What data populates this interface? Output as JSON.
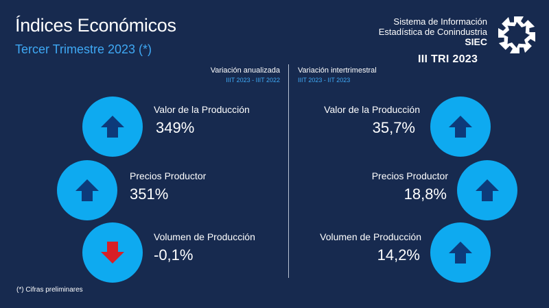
{
  "header": {
    "title": "Índices Económicos",
    "subtitle": "Tercer Trimestre 2023 (*)"
  },
  "org": {
    "line1": "Sistema de Información",
    "line2": "Estadística de Conindustria",
    "acronym": "SIEC",
    "period": "III TRI 2023",
    "logo_icon": "arrows-ring-logo-icon"
  },
  "columns": {
    "left": {
      "heading": "Variación anualizada",
      "sub": "IIIT 2023 - IIIT 2022"
    },
    "right": {
      "heading": "Variación intertrimestral",
      "sub": "IIIT 2023 - IIT 2023"
    }
  },
  "left_items": [
    {
      "label": "Valor de la Producción",
      "value": "349%",
      "direction": "up"
    },
    {
      "label": "Precios Productor",
      "value": "351%",
      "direction": "up"
    },
    {
      "label": "Volumen de Producción",
      "value": "-0,1%",
      "direction": "down"
    }
  ],
  "right_items": [
    {
      "label": "Valor de la Producción",
      "value": "35,7%",
      "direction": "up"
    },
    {
      "label": "Precios Productor",
      "value": "18,8%",
      "direction": "up"
    },
    {
      "label": "Volumen de Producción",
      "value": "14,2%",
      "direction": "up"
    }
  ],
  "colors": {
    "background": "#172a4f",
    "accent": "#3fa9f5",
    "circle": "#0eaaf0",
    "arrow_up": "#0d3a7a",
    "arrow_down": "#d81f26"
  },
  "footnote": "(*) Cifras preliminares"
}
